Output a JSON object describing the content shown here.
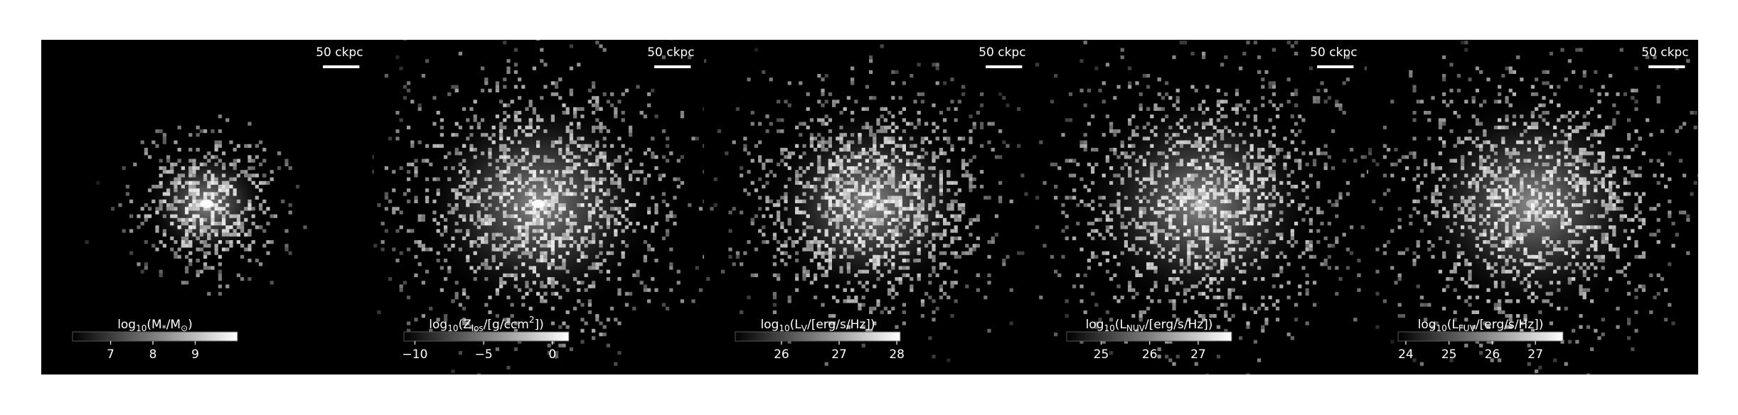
{
  "figure": {
    "panels": [
      {
        "scale_label": "50 ckpc",
        "colorbar": {
          "label": [
            "log",
            {
              "sub": "10"
            },
            "(M",
            {
              "sub": "*"
            },
            "/M",
            {
              "sub": "⊙"
            },
            ")"
          ],
          "clim": [
            6.1,
            10.0
          ],
          "ticks": [
            7,
            8,
            9
          ]
        }
      },
      {
        "scale_label": "50 ckpc",
        "colorbar": {
          "label": [
            "log",
            {
              "sub": "10"
            },
            "(Z",
            {
              "sub": "los"
            },
            "/[g/ccm",
            {
              "sup": "2"
            },
            "])"
          ],
          "clim": [
            -10.8,
            1.2
          ],
          "ticks": [
            {
              "value": -10,
              "label": "−10"
            },
            {
              "value": -5,
              "label": "−5"
            },
            0
          ]
        }
      },
      {
        "scale_label": "50 ckpc",
        "colorbar": {
          "label": [
            "log",
            {
              "sub": "10"
            },
            "(L",
            {
              "sub": "V"
            },
            "/[erg/s/Hz])"
          ],
          "clim": [
            25.2,
            28.06
          ],
          "ticks": [
            26,
            27,
            28
          ]
        }
      },
      {
        "scale_label": "50 ckpc",
        "colorbar": {
          "label": [
            "log",
            {
              "sub": "10"
            },
            "(L",
            {
              "sub": "NUV"
            },
            "/[erg/s/Hz])"
          ],
          "clim": [
            24.29,
            27.69
          ],
          "ticks": [
            25,
            26,
            27
          ]
        }
      },
      {
        "scale_label": "50 ckpc",
        "colorbar": {
          "label": [
            "log",
            {
              "sub": "10"
            },
            "(L",
            {
              "sub": "FUV"
            },
            "/[erg/s/Hz])"
          ],
          "clim": [
            23.82,
            27.64
          ],
          "ticks": [
            24,
            25,
            26,
            27
          ]
        }
      }
    ]
  }
}
